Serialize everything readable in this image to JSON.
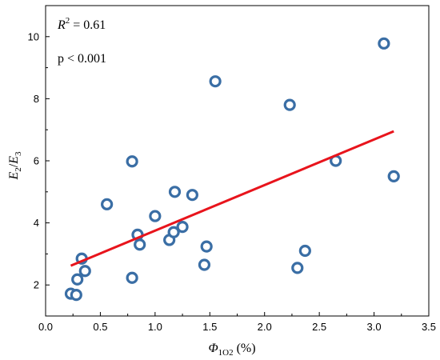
{
  "chart_data": {
    "type": "scatter",
    "xlabel": "Φ1O2 (%)",
    "xlabel_parts": {
      "main": "Φ",
      "sub": "1O2",
      "rest": " (%)"
    },
    "ylabel": "E2/E3",
    "ylabel_parts": {
      "e1": "E",
      "s1": "2",
      "slash": "/",
      "e2": "E",
      "s2": "3"
    },
    "xlim": [
      0.0,
      3.5
    ],
    "ylim": [
      1.0,
      11.0
    ],
    "xticks": [
      0.0,
      0.5,
      1.0,
      1.5,
      2.0,
      2.5,
      3.0,
      3.5
    ],
    "xtick_labels": [
      "0.0",
      "0.5",
      "1.0",
      "1.5",
      "2.0",
      "2.5",
      "3.0",
      "3.5"
    ],
    "yticks": [
      2,
      4,
      6,
      8,
      10
    ],
    "ytick_labels": [
      "2",
      "4",
      "6",
      "8",
      "10"
    ],
    "grid": false,
    "legend": "none",
    "annotations": {
      "r2_label": "R",
      "r2_sup": "2",
      "r2_value": " = 0.61",
      "p_value": "p < 0.001"
    },
    "colors": {
      "marker": "#3a6ea5",
      "fit_line": "#e8141c",
      "axis": "#000000"
    },
    "points": [
      {
        "x": 0.23,
        "y": 1.72
      },
      {
        "x": 0.28,
        "y": 1.68
      },
      {
        "x": 0.29,
        "y": 2.18
      },
      {
        "x": 0.33,
        "y": 2.85
      },
      {
        "x": 0.36,
        "y": 2.45
      },
      {
        "x": 0.56,
        "y": 4.6
      },
      {
        "x": 0.79,
        "y": 5.98
      },
      {
        "x": 0.79,
        "y": 2.23
      },
      {
        "x": 0.84,
        "y": 3.62
      },
      {
        "x": 0.86,
        "y": 3.3
      },
      {
        "x": 1.0,
        "y": 4.22
      },
      {
        "x": 1.13,
        "y": 3.45
      },
      {
        "x": 1.17,
        "y": 3.7
      },
      {
        "x": 1.18,
        "y": 5.0
      },
      {
        "x": 1.25,
        "y": 3.87
      },
      {
        "x": 1.34,
        "y": 4.9
      },
      {
        "x": 1.45,
        "y": 2.65
      },
      {
        "x": 1.47,
        "y": 3.24
      },
      {
        "x": 1.55,
        "y": 8.56
      },
      {
        "x": 2.23,
        "y": 7.8
      },
      {
        "x": 2.3,
        "y": 2.55
      },
      {
        "x": 2.37,
        "y": 3.1
      },
      {
        "x": 2.65,
        "y": 6.0
      },
      {
        "x": 3.09,
        "y": 9.78
      },
      {
        "x": 3.18,
        "y": 5.5
      }
    ],
    "fit_line": {
      "x": [
        0.23,
        3.18
      ],
      "y": [
        2.62,
        6.95
      ]
    }
  }
}
